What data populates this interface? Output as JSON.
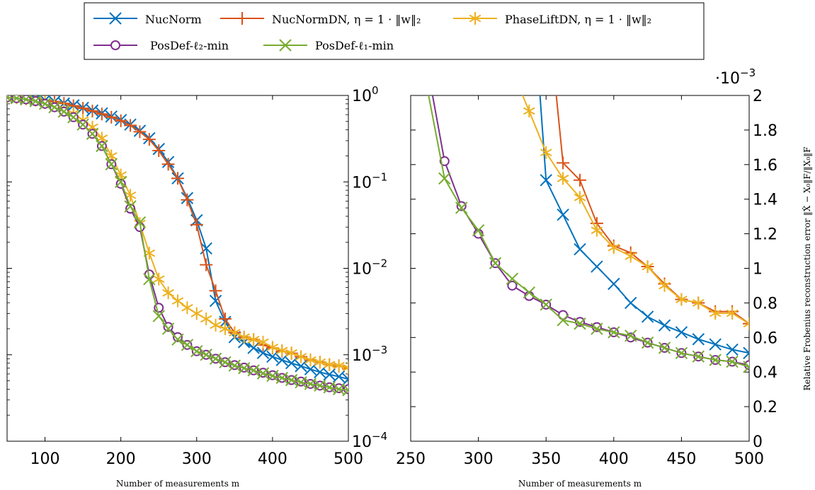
{
  "legend": {
    "entries": [
      {
        "label": "NucNorm",
        "color": "#0072BD",
        "marker": "x-marker"
      },
      {
        "label": "NucNormDN, η = 1 · ‖w‖₂",
        "color": "#D95319",
        "marker": "plus-marker"
      },
      {
        "label": "PhaseLiftDN, η = 1 · ‖w‖₂",
        "color": "#EDB120",
        "marker": "star-marker"
      },
      {
        "label": "PosDef-ℓ₂-min",
        "color": "#7E2F8E",
        "marker": "circle-marker"
      },
      {
        "label": "PosDef-ℓ₁-min",
        "color": "#77AC30",
        "marker": "x-marker"
      }
    ]
  },
  "chart_data": [
    {
      "type": "line",
      "yscale": "log",
      "xlabel": "Number of measurements m",
      "ylabel": "",
      "xlim": [
        50,
        500
      ],
      "ylim": [
        0.0001,
        1
      ],
      "grid": false,
      "x_ticks": [
        100,
        200,
        300,
        400,
        500
      ],
      "y_ticks": [
        0.0001,
        0.001,
        0.01,
        0.1,
        1
      ],
      "y_tick_labels": [
        "10^-4",
        "10^-3",
        "10^-2",
        "10^-1",
        "10^0"
      ],
      "series": [
        {
          "name": "NucNorm",
          "x": [
            50,
            62.5,
            75,
            87.5,
            100,
            112.5,
            125,
            137.5,
            150,
            162.5,
            175,
            187.5,
            200,
            212.5,
            225,
            237.5,
            250,
            262.5,
            275,
            287.5,
            300,
            312.5,
            325,
            337.5,
            350,
            362.5,
            375,
            387.5,
            400,
            412.5,
            425,
            437.5,
            450,
            462.5,
            475,
            487.5,
            500
          ],
          "y": [
            0.96,
            0.95,
            0.93,
            0.91,
            0.88,
            0.85,
            0.81,
            0.77,
            0.72,
            0.67,
            0.62,
            0.57,
            0.52,
            0.46,
            0.39,
            0.32,
            0.24,
            0.17,
            0.11,
            0.065,
            0.036,
            0.017,
            0.0042,
            0.0024,
            0.0016,
            0.0014,
            0.0012,
            0.00105,
            0.00095,
            0.00087,
            0.0008,
            0.00074,
            0.00068,
            0.00063,
            0.00059,
            0.00056,
            0.00052
          ]
        },
        {
          "name": "NucNormDN, η = 1 · ‖w‖₂",
          "x": [
            50,
            62.5,
            75,
            87.5,
            100,
            112.5,
            125,
            137.5,
            150,
            162.5,
            175,
            187.5,
            200,
            212.5,
            225,
            237.5,
            250,
            262.5,
            275,
            287.5,
            300,
            312.5,
            325,
            337.5,
            350,
            362.5,
            375,
            387.5,
            400,
            412.5,
            425,
            437.5,
            450,
            462.5,
            475,
            487.5,
            500
          ],
          "y": [
            0.96,
            0.95,
            0.93,
            0.91,
            0.88,
            0.85,
            0.81,
            0.76,
            0.71,
            0.66,
            0.61,
            0.56,
            0.51,
            0.45,
            0.38,
            0.31,
            0.23,
            0.16,
            0.11,
            0.062,
            0.032,
            0.011,
            0.0055,
            0.0026,
            0.0018,
            0.0016,
            0.0015,
            0.0013,
            0.0012,
            0.0011,
            0.00104,
            0.00095,
            0.00087,
            0.00082,
            0.00077,
            0.00074,
            0.00069
          ]
        },
        {
          "name": "PhaseLiftDN, η = 1 · ‖w‖₂",
          "x": [
            50,
            62.5,
            75,
            87.5,
            100,
            112.5,
            125,
            137.5,
            150,
            162.5,
            175,
            187.5,
            200,
            212.5,
            225,
            237.5,
            250,
            262.5,
            275,
            287.5,
            300,
            312.5,
            325,
            337.5,
            350,
            362.5,
            375,
            387.5,
            400,
            412.5,
            425,
            437.5,
            450,
            462.5,
            475,
            487.5,
            500
          ],
          "y": [
            0.95,
            0.94,
            0.91,
            0.88,
            0.83,
            0.77,
            0.7,
            0.62,
            0.52,
            0.43,
            0.32,
            0.2,
            0.12,
            0.07,
            0.033,
            0.015,
            0.0075,
            0.0052,
            0.0042,
            0.0035,
            0.003,
            0.0026,
            0.0022,
            0.002,
            0.0018,
            0.0016,
            0.0015,
            0.0014,
            0.00122,
            0.00112,
            0.00105,
            0.00095,
            0.00087,
            0.00082,
            0.00077,
            0.00075,
            0.00071
          ]
        },
        {
          "name": "PosDef-ℓ₂-min",
          "x": [
            50,
            62.5,
            75,
            87.5,
            100,
            112.5,
            125,
            137.5,
            150,
            162.5,
            175,
            187.5,
            200,
            212.5,
            225,
            237.5,
            250,
            262.5,
            275,
            287.5,
            300,
            312.5,
            325,
            337.5,
            350,
            362.5,
            375,
            387.5,
            400,
            412.5,
            425,
            437.5,
            450,
            462.5,
            475,
            487.5,
            500
          ],
          "y": [
            0.95,
            0.93,
            0.9,
            0.86,
            0.8,
            0.73,
            0.65,
            0.56,
            0.46,
            0.36,
            0.26,
            0.16,
            0.095,
            0.049,
            0.03,
            0.0085,
            0.0035,
            0.0021,
            0.0016,
            0.0013,
            0.0011,
            0.001,
            0.0009,
            0.00082,
            0.00076,
            0.00071,
            0.00066,
            0.00062,
            0.00058,
            0.00054,
            0.00051,
            0.00049,
            0.00046,
            0.00044,
            0.00042,
            0.00041,
            0.0004
          ]
        },
        {
          "name": "PosDef-ℓ₁-min",
          "x": [
            50,
            62.5,
            75,
            87.5,
            100,
            112.5,
            125,
            137.5,
            150,
            162.5,
            175,
            187.5,
            200,
            212.5,
            225,
            237.5,
            250,
            262.5,
            275,
            287.5,
            300,
            312.5,
            325,
            337.5,
            350,
            362.5,
            375,
            387.5,
            400,
            412.5,
            425,
            437.5,
            450,
            462.5,
            475,
            487.5,
            500
          ],
          "y": [
            0.95,
            0.93,
            0.9,
            0.86,
            0.8,
            0.73,
            0.65,
            0.56,
            0.46,
            0.36,
            0.26,
            0.16,
            0.1,
            0.052,
            0.034,
            0.0075,
            0.0028,
            0.002,
            0.0015,
            0.0013,
            0.0011,
            0.001,
            0.0009,
            0.00082,
            0.00075,
            0.0007,
            0.00066,
            0.00061,
            0.00057,
            0.00054,
            0.00051,
            0.00048,
            0.00046,
            0.00044,
            0.00042,
            0.0004,
            0.00039
          ]
        }
      ]
    },
    {
      "type": "line",
      "yscale": "linear",
      "xlabel": "Number of measurements m",
      "ylabel": "Relative Frobenius reconstruction error ‖X̂ − X₀‖F/‖X₀‖F",
      "y_multiplier": "·10^-3",
      "xlim": [
        250,
        500
      ],
      "ylim": [
        0,
        2
      ],
      "grid": false,
      "x_ticks": [
        250,
        300,
        350,
        400,
        450,
        500
      ],
      "y_ticks": [
        0,
        0.2,
        0.4,
        0.6,
        0.8,
        1,
        1.2,
        1.4,
        1.6,
        1.8,
        2
      ],
      "series": [
        {
          "name": "NucNorm",
          "x": [
            340,
            350,
            362.5,
            375,
            387.5,
            400,
            412.5,
            425,
            437.5,
            450,
            462.5,
            475,
            487.5,
            500
          ],
          "y": [
            2.6,
            1.51,
            1.31,
            1.11,
            1.01,
            0.91,
            0.8,
            0.72,
            0.67,
            0.63,
            0.59,
            0.56,
            0.53,
            0.51
          ]
        },
        {
          "name": "NucNormDN, η = 1 · ‖w‖₂",
          "x": [
            355,
            362.5,
            375,
            387.5,
            400,
            412.5,
            425,
            437.5,
            450,
            462.5,
            475,
            487.5,
            500
          ],
          "y": [
            2.2,
            1.61,
            1.51,
            1.26,
            1.13,
            1.09,
            1.01,
            0.91,
            0.82,
            0.8,
            0.75,
            0.75,
            0.68
          ]
        },
        {
          "name": "PhaseLiftDN, η = 1 · ‖w‖₂",
          "x": [
            330,
            337.5,
            350,
            362.5,
            375,
            387.5,
            400,
            412.5,
            425,
            437.5,
            450,
            462.5,
            475,
            487.5,
            500
          ],
          "y": [
            2.05,
            1.91,
            1.67,
            1.52,
            1.41,
            1.22,
            1.12,
            1.07,
            1.01,
            0.9,
            0.82,
            0.8,
            0.74,
            0.74,
            0.68
          ]
        },
        {
          "name": "PosDef-ℓ₂-min",
          "x": [
            265,
            275,
            287.5,
            300,
            312.5,
            325,
            337.5,
            350,
            362.5,
            375,
            387.5,
            400,
            412.5,
            425,
            437.5,
            450,
            462.5,
            475,
            487.5,
            500
          ],
          "y": [
            2.05,
            1.62,
            1.36,
            1.2,
            1.03,
            0.9,
            0.84,
            0.79,
            0.73,
            0.69,
            0.66,
            0.63,
            0.6,
            0.57,
            0.54,
            0.51,
            0.49,
            0.47,
            0.46,
            0.44
          ]
        },
        {
          "name": "PosDef-ℓ₁-min",
          "x": [
            262,
            275,
            287.5,
            300,
            312.5,
            325,
            337.5,
            350,
            362.5,
            375,
            387.5,
            400,
            412.5,
            425,
            437.5,
            450,
            462.5,
            475,
            487.5,
            500
          ],
          "y": [
            2.05,
            1.52,
            1.35,
            1.22,
            1.03,
            0.94,
            0.86,
            0.79,
            0.7,
            0.68,
            0.65,
            0.63,
            0.61,
            0.57,
            0.54,
            0.51,
            0.49,
            0.47,
            0.46,
            0.43
          ]
        }
      ]
    }
  ]
}
